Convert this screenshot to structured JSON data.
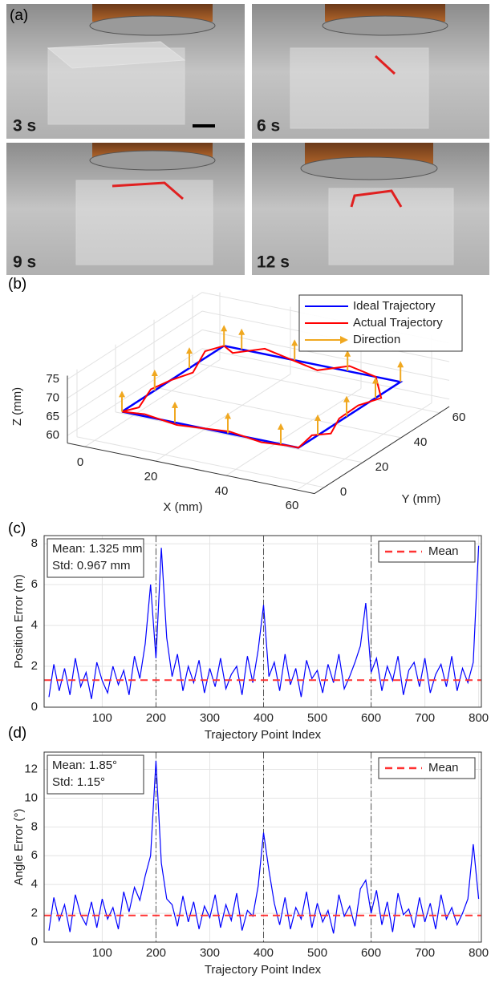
{
  "panel_a": {
    "label": "(a)",
    "photos": [
      {
        "label": "3 s"
      },
      {
        "label": "6 s"
      },
      {
        "label": "9 s"
      },
      {
        "label": "12 s"
      }
    ]
  },
  "chart_data": [
    {
      "type": "line3d",
      "panel_label": "(b)",
      "xlabel": "X (mm)",
      "ylabel": "Y (mm)",
      "zlabel": "Z (mm)",
      "xlim": [
        -5,
        65
      ],
      "ylim": [
        -5,
        65
      ],
      "zlim": [
        58,
        76
      ],
      "xticks": [
        0,
        20,
        40,
        60
      ],
      "yticks": [
        0,
        20,
        40,
        60
      ],
      "zticks": [
        60,
        65,
        70,
        75
      ],
      "grid": true,
      "series": [
        {
          "name": "Ideal Trajectory",
          "color": "#0000ff",
          "style": "line",
          "x": [
            5,
            55,
            55,
            5,
            5
          ],
          "y": [
            5,
            5,
            58,
            58,
            5
          ],
          "z": [
            65,
            65,
            65,
            65,
            65
          ]
        },
        {
          "name": "Actual Trajectory",
          "color": "#ff0000",
          "style": "line",
          "x": [
            5,
            12,
            20,
            28,
            36,
            44,
            52,
            55,
            55,
            56,
            54,
            55,
            55,
            48,
            40,
            32,
            24,
            16,
            8,
            5,
            4,
            6,
            5,
            5,
            6,
            5
          ],
          "y": [
            5,
            4,
            6,
            5,
            4,
            6,
            5,
            5,
            12,
            20,
            28,
            36,
            48,
            58,
            59,
            57,
            58,
            59,
            57,
            58,
            50,
            40,
            30,
            20,
            12,
            5
          ],
          "z": [
            65,
            66,
            64,
            65,
            66,
            64,
            65,
            65,
            66,
            64,
            65,
            66,
            64,
            65,
            66,
            64,
            65,
            66,
            64,
            65,
            66,
            64,
            65,
            66,
            64,
            65
          ]
        },
        {
          "name": "Direction",
          "color": "#f0a820",
          "style": "arrow",
          "x": [
            5,
            20,
            35,
            50,
            55,
            55,
            55,
            40,
            25,
            10,
            5,
            5,
            55,
            5
          ],
          "y": [
            5,
            5,
            5,
            5,
            15,
            30,
            45,
            58,
            58,
            58,
            40,
            22,
            58,
            58
          ],
          "z": [
            65,
            65,
            65,
            65,
            65,
            65,
            65,
            65,
            65,
            65,
            65,
            65,
            65,
            65
          ]
        }
      ]
    },
    {
      "type": "line",
      "panel_label": "(c)",
      "xlabel": "Trajectory Point Index",
      "ylabel": "Position Error (m)",
      "xlim": [
        -8,
        805
      ],
      "ylim": [
        0,
        8.4
      ],
      "xticks": [
        100,
        200,
        300,
        400,
        500,
        600,
        700,
        800
      ],
      "yticks": [
        0,
        2,
        4,
        6,
        8
      ],
      "grid": true,
      "vlines": [
        200,
        400,
        600
      ],
      "stats_text": [
        "Mean: 1.325 mm",
        "Std: 0.967 mm"
      ],
      "mean_line": {
        "name": "Mean",
        "value": 1.325,
        "color": "#ff3333"
      },
      "x": [
        1,
        10,
        20,
        30,
        40,
        50,
        60,
        70,
        80,
        90,
        100,
        110,
        120,
        130,
        140,
        150,
        160,
        170,
        180,
        190,
        200,
        210,
        220,
        230,
        240,
        250,
        260,
        270,
        280,
        290,
        300,
        310,
        320,
        330,
        340,
        350,
        360,
        370,
        380,
        390,
        400,
        410,
        420,
        430,
        440,
        450,
        460,
        470,
        480,
        490,
        500,
        510,
        520,
        530,
        540,
        550,
        560,
        570,
        580,
        590,
        600,
        610,
        620,
        630,
        640,
        650,
        660,
        670,
        680,
        690,
        700,
        710,
        720,
        730,
        740,
        750,
        760,
        770,
        780,
        790,
        800
      ],
      "series": [
        {
          "color": "#0000ff",
          "values": [
            0.5,
            2.1,
            0.8,
            1.9,
            0.6,
            2.4,
            1.0,
            1.7,
            0.4,
            2.2,
            1.3,
            0.7,
            2.0,
            1.1,
            1.8,
            0.6,
            2.5,
            1.4,
            3.1,
            6.0,
            2.4,
            7.8,
            3.4,
            1.5,
            2.6,
            0.8,
            2.0,
            1.2,
            2.3,
            0.7,
            1.9,
            1.0,
            2.4,
            0.9,
            1.6,
            2.0,
            0.6,
            2.5,
            1.2,
            2.8,
            5.0,
            1.5,
            2.2,
            0.8,
            2.6,
            1.1,
            1.9,
            0.5,
            2.3,
            1.4,
            1.8,
            0.7,
            2.1,
            1.2,
            2.6,
            0.9,
            1.5,
            2.2,
            3.0,
            5.1,
            1.7,
            2.4,
            0.8,
            2.0,
            1.3,
            2.5,
            0.6,
            1.8,
            2.2,
            1.0,
            2.4,
            0.7,
            1.6,
            2.1,
            1.0,
            2.5,
            0.8,
            1.9,
            1.2,
            2.2,
            7.9
          ]
        }
      ]
    },
    {
      "type": "line",
      "panel_label": "(d)",
      "xlabel": "Trajectory Point Index",
      "ylabel": "Angle Error (°)",
      "xlim": [
        -8,
        805
      ],
      "ylim": [
        0,
        13.2
      ],
      "xticks": [
        100,
        200,
        300,
        400,
        500,
        600,
        700,
        800
      ],
      "yticks": [
        0,
        2,
        4,
        6,
        8,
        10,
        12
      ],
      "grid": true,
      "vlines": [
        200,
        400,
        600
      ],
      "stats_text": [
        "Mean: 1.85°",
        "Std: 1.15°"
      ],
      "mean_line": {
        "name": "Mean",
        "value": 1.85,
        "color": "#ff3333"
      },
      "x": [
        1,
        10,
        20,
        30,
        40,
        50,
        60,
        70,
        80,
        90,
        100,
        110,
        120,
        130,
        140,
        150,
        160,
        170,
        180,
        190,
        200,
        210,
        220,
        230,
        240,
        250,
        260,
        270,
        280,
        290,
        300,
        310,
        320,
        330,
        340,
        350,
        360,
        370,
        380,
        390,
        400,
        410,
        420,
        430,
        440,
        450,
        460,
        470,
        480,
        490,
        500,
        510,
        520,
        530,
        540,
        550,
        560,
        570,
        580,
        590,
        600,
        610,
        620,
        630,
        640,
        650,
        660,
        670,
        680,
        690,
        700,
        710,
        720,
        730,
        740,
        750,
        760,
        770,
        780,
        790,
        800
      ],
      "series": [
        {
          "color": "#0000ff",
          "values": [
            0.8,
            3.1,
            1.5,
            2.6,
            0.7,
            3.3,
            1.9,
            1.2,
            2.8,
            1.0,
            3.0,
            1.6,
            2.4,
            0.9,
            3.5,
            2.1,
            3.8,
            2.9,
            4.6,
            6.0,
            12.6,
            5.5,
            3.0,
            2.6,
            1.1,
            3.2,
            1.4,
            2.8,
            0.9,
            2.5,
            1.7,
            3.3,
            1.0,
            2.6,
            1.5,
            3.4,
            0.8,
            2.2,
            1.8,
            3.9,
            7.6,
            5.0,
            2.7,
            1.2,
            3.1,
            0.9,
            2.4,
            1.6,
            3.5,
            1.0,
            2.7,
            1.4,
            2.2,
            0.6,
            3.3,
            1.8,
            2.5,
            1.1,
            3.7,
            4.3,
            2.0,
            3.6,
            1.2,
            2.8,
            0.7,
            3.4,
            1.9,
            2.3,
            1.0,
            3.1,
            1.4,
            2.7,
            0.9,
            3.3,
            1.6,
            2.4,
            1.2,
            2.0,
            3.0,
            6.8,
            3.0
          ]
        }
      ]
    }
  ]
}
